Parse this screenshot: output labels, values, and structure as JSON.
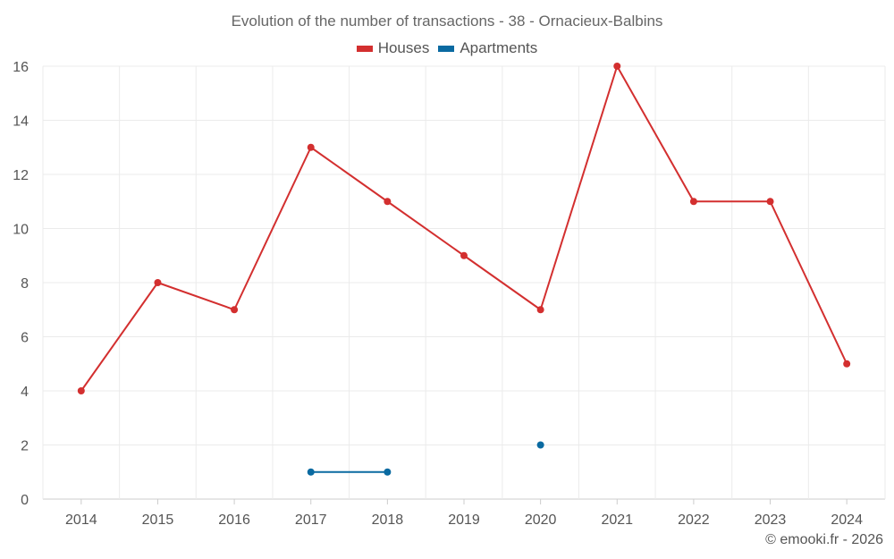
{
  "chart_data": {
    "type": "line",
    "title": "Evolution of the number of transactions - 38 - Ornacieux-Balbins",
    "xlabel": "",
    "ylabel": "",
    "categories": [
      "2014",
      "2015",
      "2016",
      "2017",
      "2018",
      "2019",
      "2020",
      "2021",
      "2022",
      "2023",
      "2024"
    ],
    "ylim": [
      0,
      16
    ],
    "yticks": [
      0,
      2,
      4,
      6,
      8,
      10,
      12,
      14,
      16
    ],
    "grid": true,
    "legend_position": "top-center",
    "series": [
      {
        "name": "Houses",
        "color": "#d32f2f",
        "values": [
          4,
          8,
          7,
          13,
          11,
          9,
          7,
          16,
          11,
          11,
          5
        ]
      },
      {
        "name": "Apartments",
        "color": "#0a6aa1",
        "values": [
          null,
          null,
          null,
          1,
          1,
          null,
          2,
          null,
          null,
          null,
          null
        ]
      }
    ]
  },
  "footer": {
    "credit": "© emooki.fr - 2026"
  }
}
